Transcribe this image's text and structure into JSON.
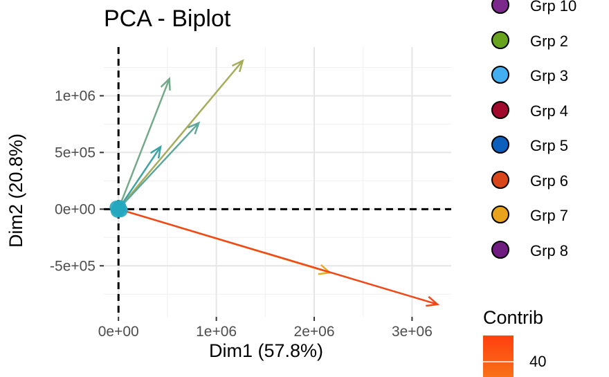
{
  "chart_data": {
    "type": "scatter",
    "title": "PCA - Biplot",
    "xlabel": "Dim1 (57.8%)",
    "ylabel": "Dim2 (20.8%)",
    "xlim": [
      -150000,
      3400000
    ],
    "ylim": [
      -950000,
      1430000
    ],
    "x_ticks": [
      {
        "value": 0,
        "label": "0e+00"
      },
      {
        "value": 1000000,
        "label": "1e+06"
      },
      {
        "value": 2000000,
        "label": "2e+06"
      },
      {
        "value": 3000000,
        "label": "3e+06"
      }
    ],
    "y_ticks": [
      {
        "value": -500000,
        "label": "-5e+05"
      },
      {
        "value": 0,
        "label": "0e+00"
      },
      {
        "value": 500000,
        "label": "5e+05"
      },
      {
        "value": 1000000,
        "label": "1e+06"
      }
    ],
    "grid": true,
    "reference_lines": {
      "x": 0,
      "y": 0,
      "style": "dashed"
    },
    "variable_arrows": [
      {
        "x": 520000,
        "y": 1150000,
        "color": "#74a98a"
      },
      {
        "x": 1270000,
        "y": 1310000,
        "color": "#a6ad5a"
      },
      {
        "x": 820000,
        "y": 760000,
        "color": "#5ea79a"
      },
      {
        "x": 430000,
        "y": 550000,
        "color": "#3ea4a3"
      },
      {
        "x": 2160000,
        "y": -560000,
        "color": "#e8aa2a"
      },
      {
        "x": 3260000,
        "y": -840000,
        "color": "#f04818"
      }
    ],
    "points": [
      {
        "x": 0,
        "y": 0,
        "color": "#23a7bf"
      },
      {
        "x": -20000,
        "y": 15000,
        "color": "#23a7bf"
      },
      {
        "x": 25000,
        "y": -10000,
        "color": "#23a7bf"
      },
      {
        "x": 10000,
        "y": 20000,
        "color": "#23a7bf"
      },
      {
        "x": -10000,
        "y": -15000,
        "color": "#23a7bf"
      }
    ],
    "legend": {
      "placement": "right",
      "groups": [
        {
          "label": "Grp 10",
          "color": "#7b2a8c"
        },
        {
          "label": "Grp 2",
          "color": "#67a31f"
        },
        {
          "label": "Grp 3",
          "color": "#43aff0"
        },
        {
          "label": "Grp 4",
          "color": "#a10a2c"
        },
        {
          "label": "Grp 5",
          "color": "#0c5fbd"
        },
        {
          "label": "Grp 6",
          "color": "#d9461a"
        },
        {
          "label": "Grp 7",
          "color": "#e9a21c"
        },
        {
          "label": "Grp 8",
          "color": "#6f1b80"
        }
      ]
    },
    "contrib_legend": {
      "title": "Contrib",
      "label": "40"
    }
  }
}
